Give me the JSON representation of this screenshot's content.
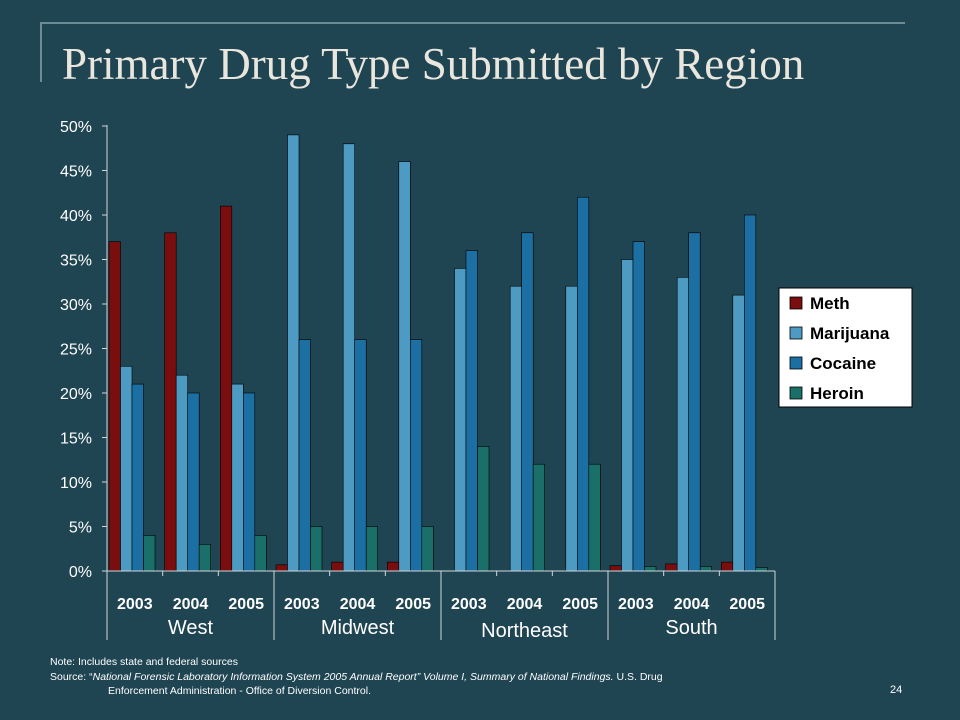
{
  "slide": {
    "title": "Primary Drug Type Submitted by Region",
    "note_line": "Note: Includes state and federal sources",
    "source_prefix": "Source:  “",
    "source_title": "National Forensic Laboratory Information System 2005 Annual Report”  Volume I, Summary of National Findings.",
    "source_tail": "  U.S. Drug",
    "source_line2": "Enforcement Administration - Office of Diversion Control.",
    "page_number": "24"
  },
  "chart_data": {
    "type": "bar",
    "groups": [
      "West",
      "Midwest",
      "Northeast",
      "South"
    ],
    "categories": [
      "2003",
      "2004",
      "2005",
      "2003",
      "2004",
      "2005",
      "2003",
      "2004",
      "2005",
      "2003",
      "2004",
      "2005"
    ],
    "series": [
      {
        "name": "Meth",
        "color": "#7a0d0d",
        "values": [
          37,
          38,
          41,
          0.7,
          1,
          1,
          0,
          0,
          0,
          0.6,
          0.8,
          1
        ]
      },
      {
        "name": "Marijuana",
        "color": "#4d9bc2",
        "values": [
          23,
          22,
          21,
          49,
          48,
          46,
          34,
          32,
          32,
          35,
          33,
          31
        ]
      },
      {
        "name": "Cocaine",
        "color": "#1c6fa3",
        "values": [
          21,
          20,
          20,
          26,
          26,
          26,
          36,
          38,
          42,
          37,
          38,
          40
        ]
      },
      {
        "name": "Heroin",
        "color": "#1a6f68",
        "values": [
          4,
          3,
          4,
          5,
          5,
          5,
          14,
          12,
          12,
          0.5,
          0.5,
          0.4
        ]
      }
    ],
    "y_ticks": [
      "0%",
      "5%",
      "10%",
      "15%",
      "20%",
      "25%",
      "30%",
      "35%",
      "40%",
      "45%",
      "50%"
    ],
    "ylim": [
      0,
      50
    ],
    "grid": false,
    "legend_position": "right"
  }
}
